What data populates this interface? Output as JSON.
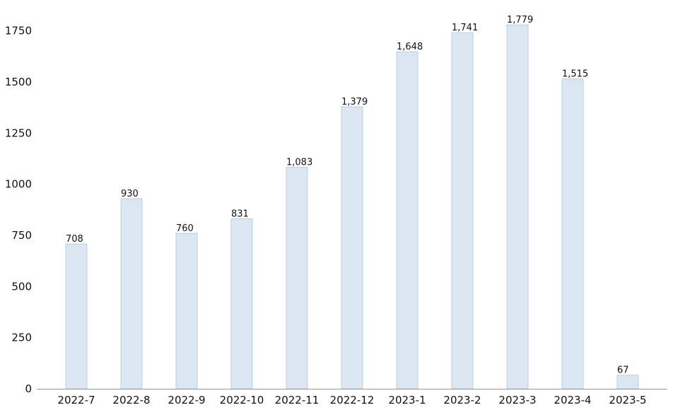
{
  "chart_data": {
    "type": "bar",
    "categories": [
      "2022-7",
      "2022-8",
      "2022-9",
      "2022-10",
      "2022-11",
      "2022-12",
      "2023-1",
      "2023-2",
      "2023-3",
      "2023-4",
      "2023-5"
    ],
    "values": [
      708,
      930,
      760,
      831,
      1083,
      1379,
      1648,
      1741,
      1779,
      1515,
      67
    ],
    "data_labels": [
      "708",
      "930",
      "760",
      "831",
      "1,083",
      "1,379",
      "1,648",
      "1,741",
      "1,779",
      "1,515",
      "67"
    ],
    "y_ticks": [
      0,
      250,
      500,
      750,
      1000,
      1250,
      1500,
      1750
    ],
    "y_tick_labels": [
      "0",
      "250",
      "500",
      "750",
      "1000",
      "1250",
      "1500",
      "1750"
    ],
    "ylim": [
      0,
      1880
    ],
    "grid": false,
    "legend": "none",
    "bar_fill": "#dce6f1",
    "bar_stroke": "#b9cfe0",
    "axis_color": "#999999"
  }
}
